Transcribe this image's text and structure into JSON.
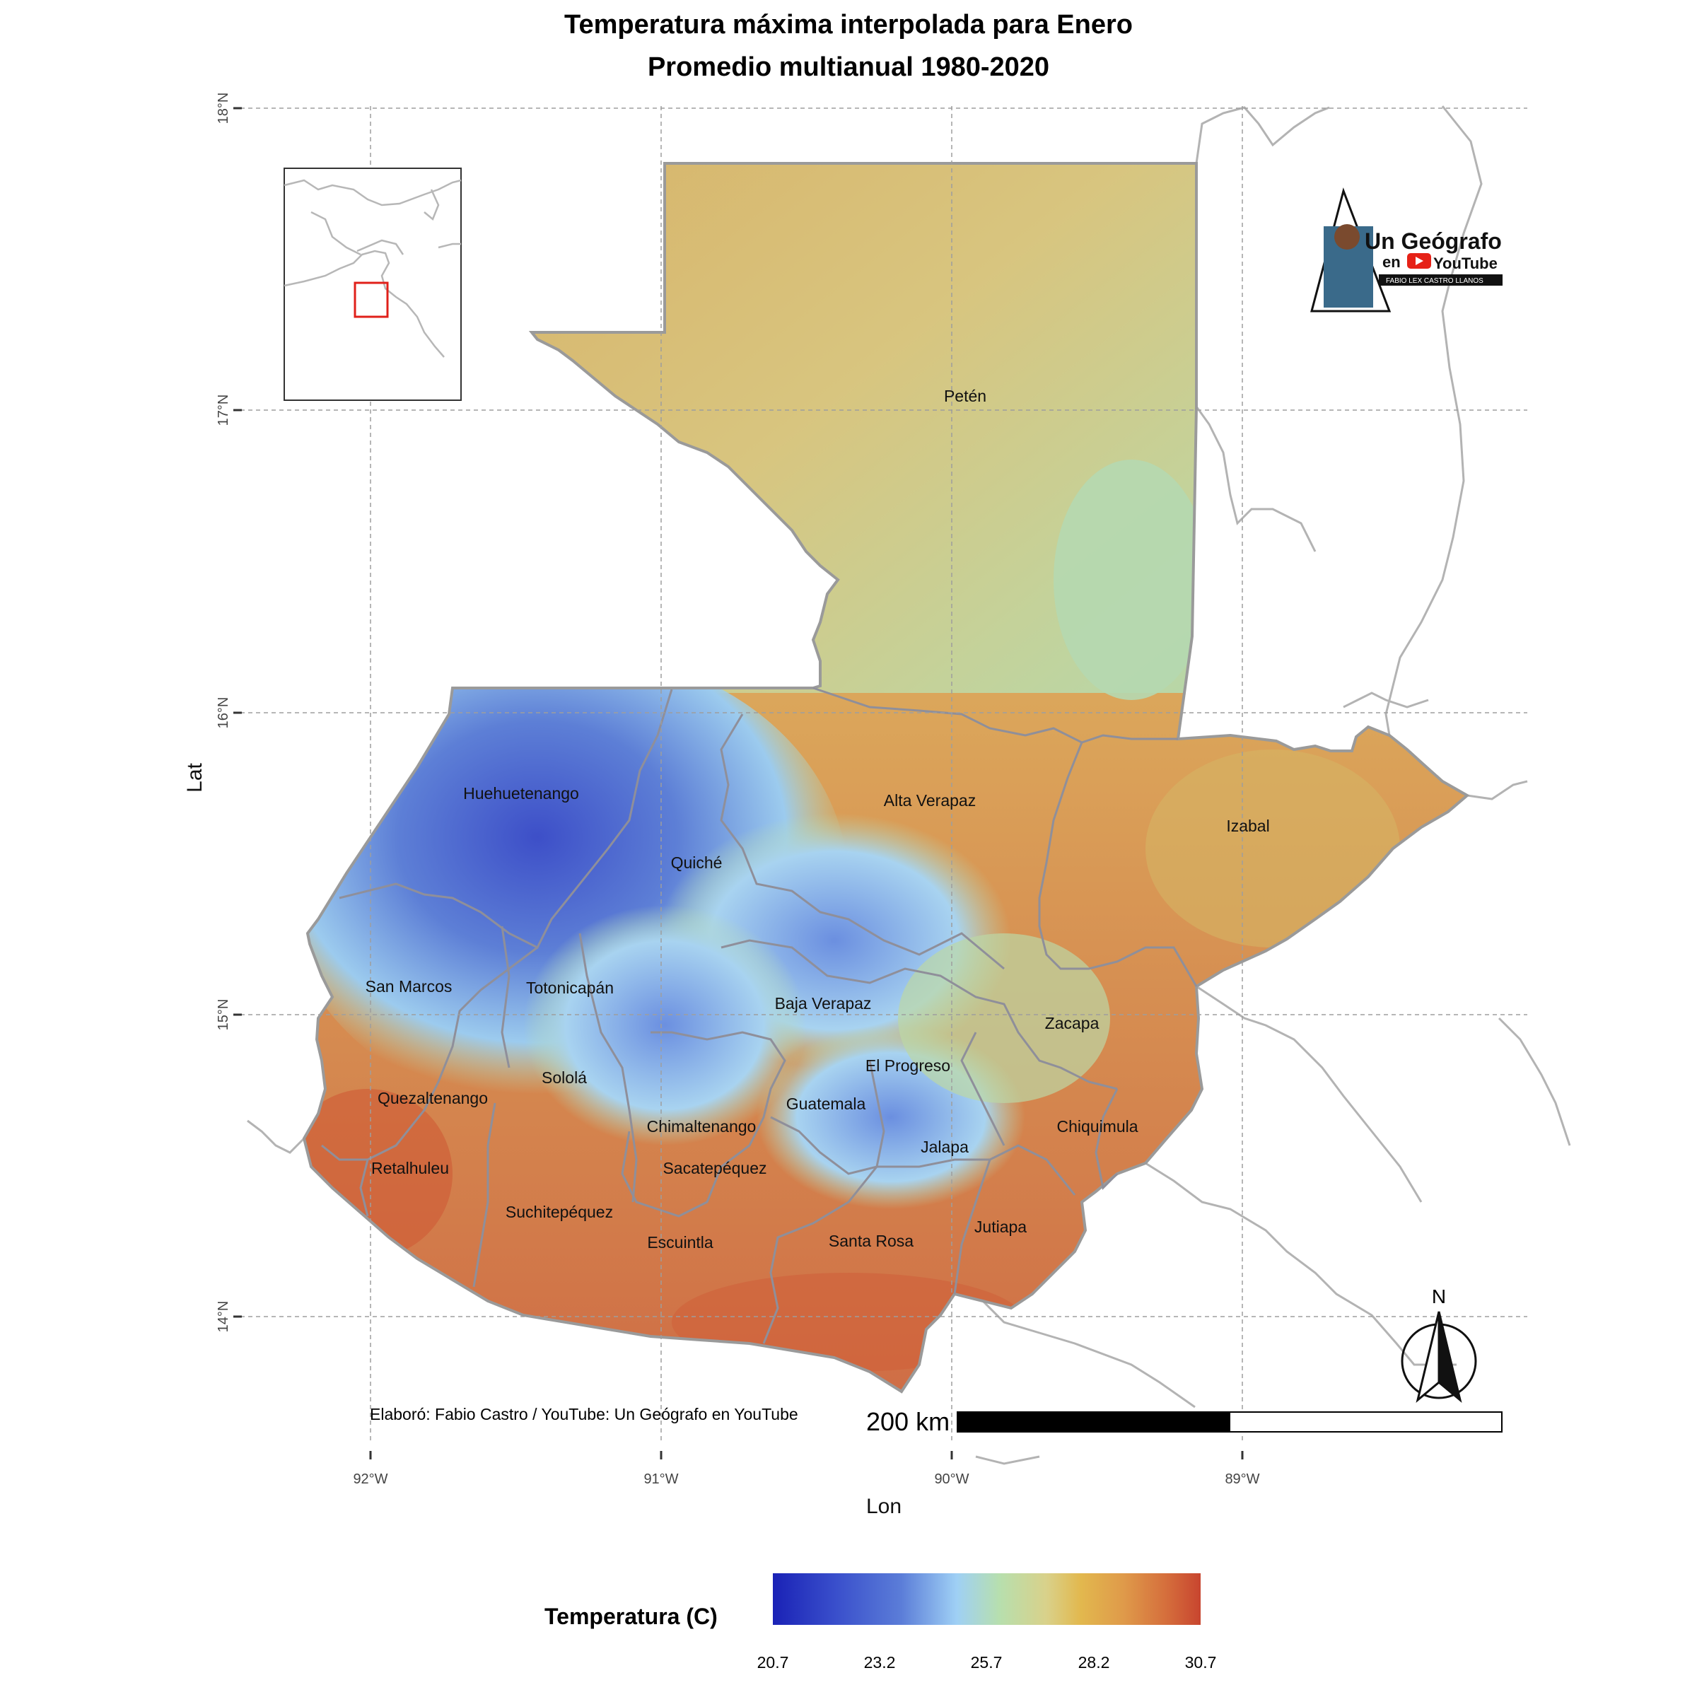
{
  "title": "Temperatura máxima interpolada para Enero",
  "subtitle": "Promedio multianual 1980-2020",
  "axes": {
    "x_title": "Lon",
    "y_title": "Lat",
    "x_ticks": [
      "92°W",
      "91°W",
      "90°W",
      "89°W"
    ],
    "y_ticks": [
      "18°N",
      "17°N",
      "16°N",
      "15°N",
      "14°N"
    ]
  },
  "departments": [
    "Petén",
    "Huehuetenango",
    "Alta Verapaz",
    "Izabal",
    "Quiché",
    "San Marcos",
    "Totonicapán",
    "Baja Verapaz",
    "Zacapa",
    "El Progreso",
    "Sololá",
    "Quezaltenango",
    "Guatemala",
    "Chimaltenango",
    "Chiquimula",
    "Jalapa",
    "Retalhuleu",
    "Sacatepéquez",
    "Suchitepéquez",
    "Jutiapa",
    "Santa Rosa",
    "Escuintla"
  ],
  "legend": {
    "title": "Temperatura (C)",
    "ticks": [
      "20.7",
      "23.2",
      "25.7",
      "28.2",
      "30.7"
    ],
    "min": 20.7,
    "max": 30.7,
    "colors": [
      "#1a22b6",
      "#5b7dd8",
      "#9fd0f5",
      "#b7dfae",
      "#e2b84e",
      "#df9a4a",
      "#c8452f"
    ]
  },
  "credit": "Elaboró: Fabio Castro / YouTube: Un Geógrafo en YouTube",
  "scale_bar": {
    "label": "200 km"
  },
  "north_arrow": {
    "label": "N"
  },
  "logo": {
    "line1": "Un Geógrafo",
    "line2": "en",
    "line3": "YouTube",
    "line4": "FABIO LEX CASTRO LLANOS"
  }
}
